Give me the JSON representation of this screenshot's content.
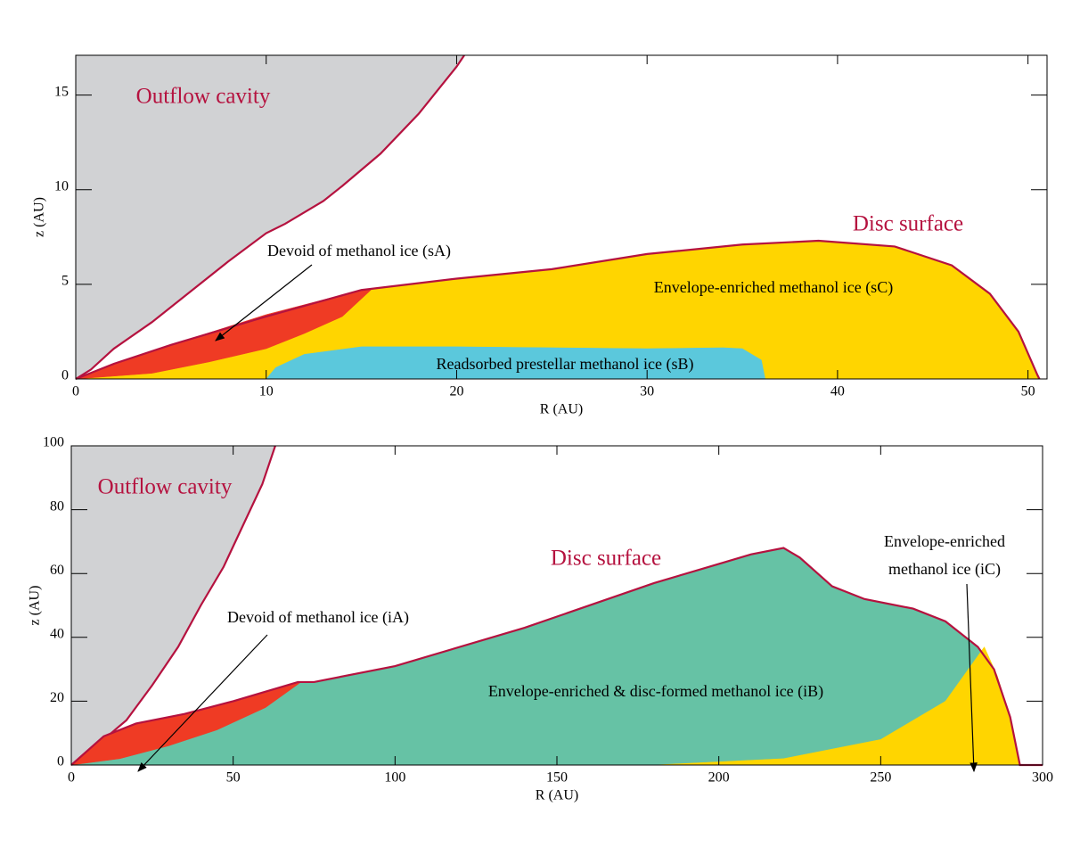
{
  "chart_data": [
    {
      "type": "area",
      "xlabel": "R (AU)",
      "ylabel": "z (AU)",
      "xlim": [
        0,
        51
      ],
      "ylim": [
        0,
        17.1
      ],
      "xticks": [
        0,
        10,
        20,
        30,
        40,
        50
      ],
      "yticks": [
        0,
        5,
        10,
        15
      ],
      "series": [
        {
          "color": "#d1d2d4",
          "style": "fill",
          "x": [
            0,
            0.8,
            2,
            4,
            6,
            8,
            10,
            11,
            13,
            14,
            16,
            18,
            20,
            20.4,
            0
          ],
          "values": [
            0,
            0.5,
            1.6,
            3,
            4.6,
            6.2,
            7.7,
            8.2,
            9.4,
            10.2,
            11.9,
            14,
            16.5,
            17.1,
            17.1
          ]
        },
        {
          "color": "#b5123f",
          "style": "line",
          "x": [
            0,
            0.8,
            2,
            4,
            6,
            8,
            10,
            11,
            13,
            14,
            16,
            18,
            20,
            20.4
          ],
          "values": [
            0,
            0.5,
            1.6,
            3,
            4.6,
            6.2,
            7.7,
            8.2,
            9.4,
            10.2,
            11.9,
            14,
            16.5,
            17.1
          ]
        },
        {
          "color": "#ffd500",
          "style": "fill",
          "x": [
            0,
            1,
            2,
            5,
            10,
            15,
            20,
            25,
            30,
            35,
            39,
            43,
            46,
            48,
            49.5,
            50.5,
            50.6
          ],
          "values": [
            0,
            0.4,
            0.8,
            1.8,
            3.3,
            4.7,
            5.3,
            5.8,
            6.6,
            7.1,
            7.3,
            7.0,
            6.0,
            4.5,
            2.5,
            0.2,
            0
          ]
        },
        {
          "color": "#ef3b24",
          "style": "fill",
          "x": [
            0,
            2,
            5,
            10,
            15,
            15.5,
            14,
            12,
            10,
            7,
            4,
            0
          ],
          "values": [
            0,
            0.8,
            1.8,
            3.4,
            4.7,
            4.7,
            3.3,
            2.4,
            1.6,
            0.9,
            0.3,
            0
          ]
        },
        {
          "color": "#5bc8dc",
          "style": "fill",
          "x": [
            10,
            10.5,
            12,
            15,
            20,
            30,
            34,
            35,
            36,
            36.2
          ],
          "values": [
            0,
            0.6,
            1.3,
            1.7,
            1.7,
            1.6,
            1.65,
            1.6,
            1,
            0
          ]
        },
        {
          "color": "#b5123f",
          "style": "line",
          "x": [
            0,
            1,
            2,
            5,
            10,
            15,
            20,
            25,
            30,
            35,
            39,
            43,
            46,
            48,
            49.5,
            50.5,
            50.6
          ],
          "values": [
            0,
            0.4,
            0.8,
            1.8,
            3.3,
            4.7,
            5.3,
            5.8,
            6.6,
            7.1,
            7.3,
            7.0,
            6.0,
            4.5,
            2.5,
            0.2,
            0
          ]
        }
      ],
      "annotations": [
        {
          "text": "Outflow cavity",
          "color": "#b5123f"
        },
        {
          "text": "Disc surface",
          "color": "#b5123f"
        },
        {
          "text": "Devoid of methanol ice (sA)",
          "color": "#000000"
        },
        {
          "text": "Envelope-enriched methanol ice (sC)",
          "color": "#000000"
        },
        {
          "text": "Readsorbed prestellar methanol ice (sB)",
          "color": "#000000"
        }
      ]
    },
    {
      "type": "area",
      "xlabel": "R (AU)",
      "ylabel": "z (AU)",
      "xlim": [
        0,
        300
      ],
      "ylim": [
        0,
        100
      ],
      "xticks": [
        0,
        50,
        100,
        150,
        200,
        250,
        300
      ],
      "yticks": [
        0,
        20,
        40,
        60,
        80,
        100
      ],
      "series": [
        {
          "color": "#d1d2d4",
          "style": "fill",
          "x": [
            0,
            5,
            10,
            17,
            25,
            33,
            40,
            47,
            53,
            59,
            63,
            0
          ],
          "values": [
            0,
            3,
            8,
            14,
            25,
            37,
            50,
            62,
            75,
            88,
            100,
            100
          ]
        },
        {
          "color": "#b5123f",
          "style": "line",
          "x": [
            0,
            5,
            10,
            17,
            25,
            33,
            40,
            47,
            53,
            59,
            63
          ],
          "values": [
            0,
            3,
            8,
            14,
            25,
            37,
            50,
            62,
            75,
            88,
            100
          ]
        },
        {
          "color": "#66c2a5",
          "style": "fill",
          "x": [
            0,
            10,
            20,
            35,
            50,
            60,
            70,
            72,
            75,
            100,
            140,
            180,
            210,
            220,
            225,
            235,
            245,
            260,
            270,
            280,
            285,
            290,
            292,
            293
          ],
          "values": [
            0,
            9,
            13,
            16,
            20,
            23,
            26,
            26,
            26,
            31,
            43,
            57,
            66,
            68,
            65,
            56,
            52,
            49,
            45,
            37,
            30,
            15,
            5,
            0
          ]
        },
        {
          "color": "#ffd500",
          "style": "fill",
          "x": [
            180,
            220,
            250,
            270,
            282,
            286,
            290,
            292,
            293
          ],
          "values": [
            0,
            2,
            8,
            20,
            37,
            28,
            15,
            5,
            0
          ]
        },
        {
          "color": "#ef3b24",
          "style": "fill",
          "x": [
            0,
            10,
            20,
            35,
            50,
            60,
            71,
            60,
            45,
            30,
            15,
            0
          ],
          "values": [
            0,
            9,
            13,
            16,
            20,
            23,
            26,
            18,
            11,
            6,
            2,
            0
          ]
        },
        {
          "color": "#b5123f",
          "style": "line",
          "x": [
            0,
            10,
            20,
            35,
            50,
            60,
            70,
            72,
            75,
            100,
            140,
            180,
            210,
            220,
            225,
            235,
            245,
            260,
            270,
            280,
            285,
            290,
            292,
            293,
            300
          ],
          "values": [
            0,
            9,
            13,
            16,
            20,
            23,
            26,
            26,
            26,
            31,
            43,
            57,
            66,
            68,
            65,
            56,
            52,
            49,
            45,
            37,
            30,
            15,
            5,
            0,
            0
          ]
        }
      ],
      "annotations": [
        {
          "text": "Outflow cavity",
          "color": "#b5123f"
        },
        {
          "text": "Disc surface",
          "color": "#b5123f"
        },
        {
          "text": "Envelope-enriched",
          "color": "#000000"
        },
        {
          "text": "methanol ice (iC)",
          "color": "#000000"
        },
        {
          "text": "Devoid of methanol ice (iA)",
          "color": "#000000"
        },
        {
          "text": "Envelope-enriched & disc-formed methanol ice (iB)",
          "color": "#000000"
        }
      ]
    }
  ]
}
